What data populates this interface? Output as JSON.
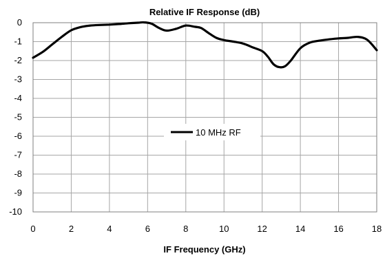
{
  "chart_data": {
    "type": "line",
    "title": "Relative IF Response (dB)",
    "xlabel": "IF Frequency  (GHz)",
    "ylabel": "",
    "xlim": [
      0,
      18
    ],
    "ylim": [
      -10,
      0
    ],
    "xticks": [
      0,
      2,
      4,
      6,
      8,
      10,
      12,
      14,
      16,
      18
    ],
    "yticks": [
      0,
      -1,
      -2,
      -3,
      -4,
      -5,
      -6,
      -7,
      -8,
      -9,
      -10
    ],
    "grid": true,
    "legend": "center",
    "series": [
      {
        "name": "10 MHz RF",
        "color": "#000000",
        "x": [
          0,
          0.5,
          1,
          1.5,
          2,
          2.5,
          3,
          3.5,
          4,
          4.5,
          5,
          5.5,
          5.8,
          6.2,
          6.6,
          7,
          7.5,
          8,
          8.5,
          8.8,
          9.2,
          9.6,
          10,
          10.5,
          11,
          11.5,
          12,
          12.3,
          12.6,
          12.9,
          13.2,
          13.5,
          14,
          14.5,
          15,
          15.5,
          16,
          16.5,
          17,
          17.5,
          18
        ],
        "y": [
          -1.85,
          -1.55,
          -1.15,
          -0.75,
          -0.4,
          -0.23,
          -0.15,
          -0.12,
          -0.1,
          -0.07,
          -0.03,
          0,
          0.02,
          -0.05,
          -0.28,
          -0.42,
          -0.32,
          -0.15,
          -0.22,
          -0.28,
          -0.55,
          -0.8,
          -0.92,
          -1.0,
          -1.1,
          -1.3,
          -1.5,
          -1.8,
          -2.2,
          -2.35,
          -2.3,
          -2.0,
          -1.35,
          -1.05,
          -0.95,
          -0.88,
          -0.83,
          -0.8,
          -0.75,
          -0.9,
          -1.45
        ]
      }
    ]
  }
}
